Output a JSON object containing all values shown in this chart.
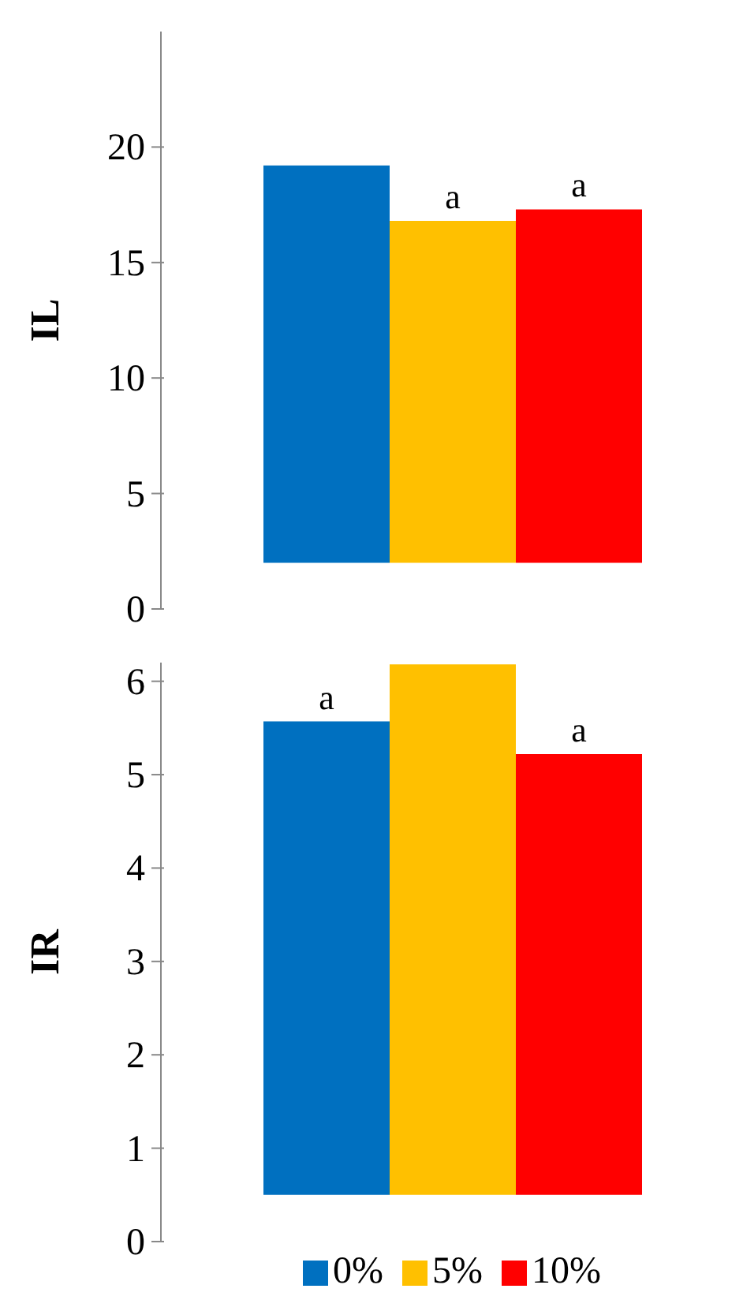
{
  "chart_data": [
    {
      "type": "bar",
      "ylabel": "IL",
      "categories": [
        null
      ],
      "ylim": [
        0,
        25
      ],
      "yticks": [
        0,
        5,
        10,
        15,
        20
      ],
      "series": [
        {
          "color": "#0070c0",
          "base": [
            2
          ],
          "values": [
            17.2
          ]
        },
        {
          "color": "#ffc000",
          "base": [
            2
          ],
          "values": [
            14.8
          ],
          "value_labels": [
            "a"
          ]
        },
        {
          "color": "#ff0000",
          "base": [
            2
          ],
          "values": [
            15.3
          ],
          "value_labels": [
            "a"
          ]
        }
      ],
      "grid": false,
      "tick_labels": "y"
    },
    {
      "type": "bar",
      "ylabel": "IR",
      "categories": [
        null
      ],
      "ylim": [
        0,
        6.2
      ],
      "yticks": [
        0,
        1,
        2,
        3,
        4,
        5,
        6
      ],
      "series": [
        {
          "name": "0%",
          "color": "#0070c0",
          "base": [
            0.5
          ],
          "values": [
            5.07
          ],
          "value_labels": [
            "a"
          ]
        },
        {
          "name": "5%",
          "color": "#ffc000",
          "base": [
            0.5
          ],
          "values": [
            5.68
          ]
        },
        {
          "name": "10%",
          "color": "#ff0000",
          "base": [
            0.5
          ],
          "values": [
            4.72
          ],
          "value_labels": [
            "a"
          ]
        }
      ],
      "grid": false,
      "tick_labels": "y",
      "legend": "bottom"
    }
  ]
}
